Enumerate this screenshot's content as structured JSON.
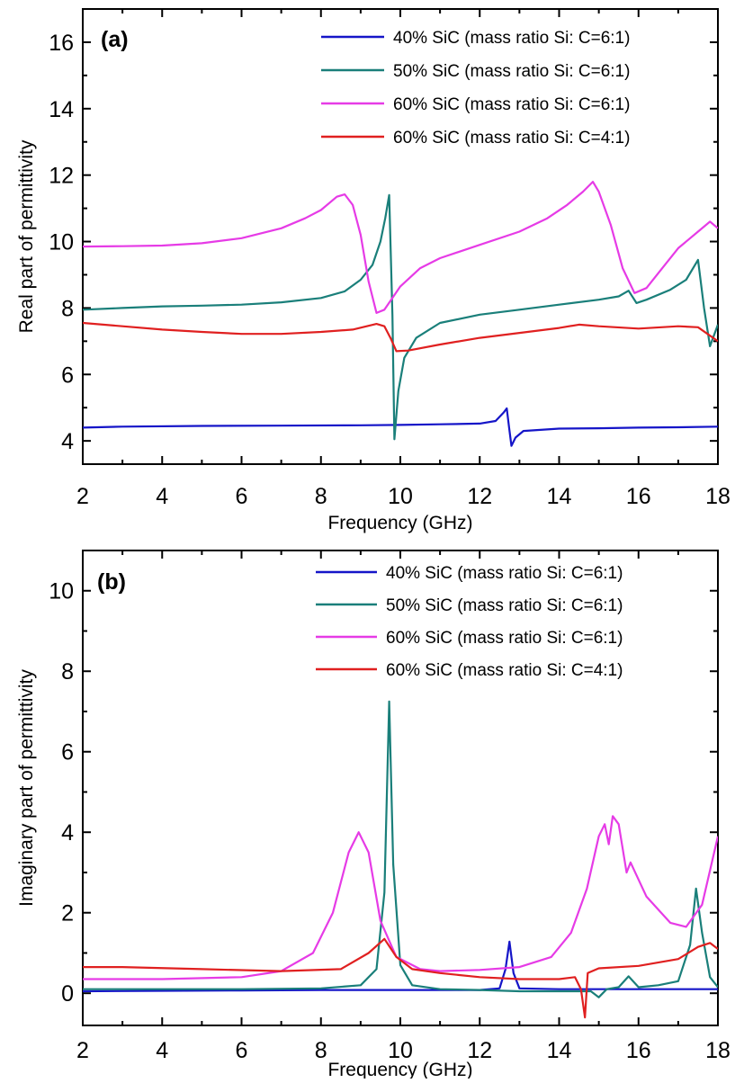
{
  "chart_data": [
    {
      "type": "line",
      "panel_label": "(a)",
      "xlabel": "Frequency (GHz)",
      "ylabel": "Real part of permittivity",
      "xlim": [
        2,
        18
      ],
      "ylim": [
        3.3,
        17
      ],
      "xticks": [
        2,
        4,
        6,
        8,
        10,
        12,
        14,
        16,
        18
      ],
      "xtick_labels": [
        "2",
        "4",
        "6",
        "8",
        "10",
        "12",
        "14",
        "16",
        "18"
      ],
      "yticks": [
        4,
        6,
        8,
        10,
        12,
        14,
        16
      ],
      "ytick_labels": [
        "4",
        "6",
        "8",
        "10",
        "12",
        "14",
        "16"
      ],
      "grid": false,
      "legend_position": "top-right",
      "series": [
        {
          "name": "40% SiC (mass ratio Si: C=6:1)",
          "color": "#1515c8",
          "points": [
            [
              2,
              4.4
            ],
            [
              3,
              4.43
            ],
            [
              5,
              4.45
            ],
            [
              7,
              4.46
            ],
            [
              9,
              4.47
            ],
            [
              10,
              4.48
            ],
            [
              11,
              4.5
            ],
            [
              12,
              4.52
            ],
            [
              12.4,
              4.6
            ],
            [
              12.6,
              4.85
            ],
            [
              12.68,
              4.98
            ],
            [
              12.74,
              4.4
            ],
            [
              12.8,
              3.85
            ],
            [
              12.9,
              4.1
            ],
            [
              13.1,
              4.3
            ],
            [
              14,
              4.37
            ],
            [
              15,
              4.38
            ],
            [
              16,
              4.4
            ],
            [
              17,
              4.41
            ],
            [
              18,
              4.43
            ]
          ]
        },
        {
          "name": "50% SiC (mass ratio Si: C=6:1)",
          "color": "#1a7f7a",
          "points": [
            [
              2,
              7.95
            ],
            [
              3,
              8.0
            ],
            [
              4,
              8.05
            ],
            [
              5,
              8.07
            ],
            [
              6,
              8.1
            ],
            [
              7,
              8.17
            ],
            [
              8,
              8.3
            ],
            [
              8.6,
              8.5
            ],
            [
              9.0,
              8.85
            ],
            [
              9.3,
              9.3
            ],
            [
              9.5,
              10.0
            ],
            [
              9.62,
              10.7
            ],
            [
              9.72,
              11.4
            ],
            [
              9.8,
              7.8
            ],
            [
              9.85,
              4.05
            ],
            [
              9.95,
              5.5
            ],
            [
              10.1,
              6.5
            ],
            [
              10.4,
              7.1
            ],
            [
              11,
              7.55
            ],
            [
              12,
              7.8
            ],
            [
              13,
              7.95
            ],
            [
              14,
              8.1
            ],
            [
              15,
              8.25
            ],
            [
              15.5,
              8.35
            ],
            [
              15.75,
              8.52
            ],
            [
              15.95,
              8.15
            ],
            [
              16.2,
              8.25
            ],
            [
              16.8,
              8.55
            ],
            [
              17.2,
              8.85
            ],
            [
              17.5,
              9.45
            ],
            [
              17.65,
              8.0
            ],
            [
              17.8,
              6.85
            ],
            [
              18,
              7.5
            ]
          ]
        },
        {
          "name": "60% SiC (mass ratio Si: C=6:1)",
          "color": "#e63be6",
          "points": [
            [
              2,
              9.85
            ],
            [
              3,
              9.86
            ],
            [
              4,
              9.88
            ],
            [
              5,
              9.95
            ],
            [
              6,
              10.1
            ],
            [
              7,
              10.4
            ],
            [
              7.6,
              10.7
            ],
            [
              8.0,
              10.95
            ],
            [
              8.4,
              11.35
            ],
            [
              8.6,
              11.42
            ],
            [
              8.8,
              11.1
            ],
            [
              9.0,
              10.2
            ],
            [
              9.2,
              8.8
            ],
            [
              9.4,
              7.85
            ],
            [
              9.6,
              7.95
            ],
            [
              10.0,
              8.65
            ],
            [
              10.5,
              9.2
            ],
            [
              11,
              9.5
            ],
            [
              12,
              9.9
            ],
            [
              13,
              10.3
            ],
            [
              13.7,
              10.7
            ],
            [
              14.2,
              11.1
            ],
            [
              14.6,
              11.5
            ],
            [
              14.85,
              11.8
            ],
            [
              15.0,
              11.5
            ],
            [
              15.3,
              10.5
            ],
            [
              15.6,
              9.2
            ],
            [
              15.9,
              8.45
            ],
            [
              16.2,
              8.6
            ],
            [
              16.6,
              9.2
            ],
            [
              17.0,
              9.8
            ],
            [
              17.5,
              10.3
            ],
            [
              17.8,
              10.6
            ],
            [
              18,
              10.4
            ]
          ]
        },
        {
          "name": "60% SiC (mass ratio Si: C=4:1)",
          "color": "#e02020",
          "points": [
            [
              2,
              7.55
            ],
            [
              3,
              7.45
            ],
            [
              4,
              7.35
            ],
            [
              5,
              7.28
            ],
            [
              6,
              7.22
            ],
            [
              7,
              7.22
            ],
            [
              8,
              7.28
            ],
            [
              8.8,
              7.35
            ],
            [
              9.4,
              7.52
            ],
            [
              9.6,
              7.45
            ],
            [
              9.75,
              7.1
            ],
            [
              9.9,
              6.7
            ],
            [
              10.2,
              6.72
            ],
            [
              11,
              6.9
            ],
            [
              12,
              7.1
            ],
            [
              13,
              7.25
            ],
            [
              14,
              7.4
            ],
            [
              14.5,
              7.5
            ],
            [
              15,
              7.45
            ],
            [
              16,
              7.38
            ],
            [
              17,
              7.45
            ],
            [
              17.5,
              7.42
            ],
            [
              18,
              7.0
            ]
          ]
        }
      ]
    },
    {
      "type": "line",
      "panel_label": "(b)",
      "xlabel": "Frequency (GHz)",
      "ylabel": "Imaginary part of permittivity",
      "xlim": [
        2,
        18
      ],
      "ylim": [
        -0.8,
        11
      ],
      "xticks": [
        2,
        4,
        6,
        8,
        10,
        12,
        14,
        16,
        18
      ],
      "xtick_labels": [
        "2",
        "4",
        "6",
        "8",
        "10",
        "12",
        "14",
        "16",
        "18"
      ],
      "yticks": [
        0,
        2,
        4,
        6,
        8,
        10
      ],
      "ytick_labels": [
        "0",
        "2",
        "4",
        "6",
        "8",
        "10"
      ],
      "grid": false,
      "legend_position": "top-right",
      "series": [
        {
          "name": "40% SiC (mass ratio Si: C=6:1)",
          "color": "#1515c8",
          "points": [
            [
              2,
              0.05
            ],
            [
              4,
              0.06
            ],
            [
              6,
              0.07
            ],
            [
              8,
              0.08
            ],
            [
              10,
              0.08
            ],
            [
              12,
              0.08
            ],
            [
              12.5,
              0.12
            ],
            [
              12.65,
              0.6
            ],
            [
              12.75,
              1.28
            ],
            [
              12.85,
              0.5
            ],
            [
              13.0,
              0.12
            ],
            [
              14,
              0.1
            ],
            [
              16,
              0.1
            ],
            [
              18,
              0.1
            ]
          ]
        },
        {
          "name": "50% SiC (mass ratio Si: C=6:1)",
          "color": "#1a7f7a",
          "points": [
            [
              2,
              0.1
            ],
            [
              4,
              0.1
            ],
            [
              6,
              0.1
            ],
            [
              8,
              0.12
            ],
            [
              9,
              0.2
            ],
            [
              9.4,
              0.6
            ],
            [
              9.6,
              2.5
            ],
            [
              9.72,
              7.25
            ],
            [
              9.82,
              3.2
            ],
            [
              10.0,
              0.7
            ],
            [
              10.3,
              0.2
            ],
            [
              11,
              0.1
            ],
            [
              12,
              0.08
            ],
            [
              13,
              0.05
            ],
            [
              14,
              0.05
            ],
            [
              14.8,
              0.05
            ],
            [
              15.0,
              -0.1
            ],
            [
              15.2,
              0.1
            ],
            [
              15.5,
              0.15
            ],
            [
              15.75,
              0.42
            ],
            [
              16.0,
              0.15
            ],
            [
              16.5,
              0.2
            ],
            [
              17.0,
              0.3
            ],
            [
              17.3,
              1.2
            ],
            [
              17.45,
              2.6
            ],
            [
              17.6,
              1.5
            ],
            [
              17.8,
              0.4
            ],
            [
              18,
              0.15
            ]
          ]
        },
        {
          "name": "60% SiC (mass ratio Si: C=6:1)",
          "color": "#e63be6",
          "points": [
            [
              2,
              0.35
            ],
            [
              4,
              0.35
            ],
            [
              6,
              0.4
            ],
            [
              7,
              0.55
            ],
            [
              7.8,
              1.0
            ],
            [
              8.3,
              2.0
            ],
            [
              8.7,
              3.5
            ],
            [
              8.95,
              4.0
            ],
            [
              9.2,
              3.5
            ],
            [
              9.5,
              1.8
            ],
            [
              9.9,
              0.9
            ],
            [
              10.5,
              0.6
            ],
            [
              11,
              0.55
            ],
            [
              12,
              0.58
            ],
            [
              13,
              0.65
            ],
            [
              13.8,
              0.9
            ],
            [
              14.3,
              1.5
            ],
            [
              14.7,
              2.6
            ],
            [
              15.0,
              3.9
            ],
            [
              15.15,
              4.2
            ],
            [
              15.25,
              3.7
            ],
            [
              15.35,
              4.4
            ],
            [
              15.5,
              4.2
            ],
            [
              15.7,
              3.0
            ],
            [
              15.8,
              3.25
            ],
            [
              16.2,
              2.4
            ],
            [
              16.8,
              1.75
            ],
            [
              17.2,
              1.65
            ],
            [
              17.6,
              2.2
            ],
            [
              18,
              3.9
            ]
          ]
        },
        {
          "name": "60% SiC (mass ratio Si: C=4:1)",
          "color": "#e02020",
          "points": [
            [
              2,
              0.65
            ],
            [
              3,
              0.65
            ],
            [
              5,
              0.6
            ],
            [
              7,
              0.55
            ],
            [
              8.5,
              0.6
            ],
            [
              9.2,
              1.0
            ],
            [
              9.6,
              1.35
            ],
            [
              9.9,
              0.9
            ],
            [
              10.3,
              0.6
            ],
            [
              11,
              0.5
            ],
            [
              12,
              0.4
            ],
            [
              13,
              0.35
            ],
            [
              14,
              0.35
            ],
            [
              14.4,
              0.4
            ],
            [
              14.55,
              0.1
            ],
            [
              14.65,
              -0.6
            ],
            [
              14.72,
              0.5
            ],
            [
              15,
              0.62
            ],
            [
              16,
              0.68
            ],
            [
              17,
              0.85
            ],
            [
              17.5,
              1.15
            ],
            [
              17.8,
              1.25
            ],
            [
              18,
              1.1
            ]
          ]
        }
      ]
    }
  ]
}
